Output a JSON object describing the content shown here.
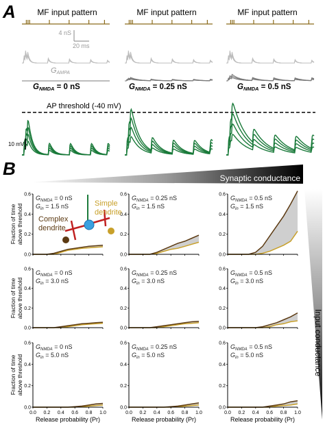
{
  "panel_a": {
    "letter": "A",
    "mf_label": "MF input pattern",
    "scale_ns": "4 nS",
    "scale_ms": "20 ms",
    "gampa_prefix": "G",
    "gampa_sub": "AMPA",
    "gnmda_titles": [
      {
        "prefix": "G",
        "sub": "NMDA",
        "value": " = 0 nS"
      },
      {
        "prefix": "G",
        "sub": "NMDA",
        "value": " = 0.25 nS"
      },
      {
        "prefix": "G",
        "sub": "NMDA",
        "value": " = 0.5 nS"
      }
    ],
    "ap_threshold": "AP threshold (-40 mV)",
    "scale_mv": "10 mV"
  },
  "panel_b": {
    "letter": "B",
    "synaptic_label": "Synaptic conductance",
    "input_label": "Input conductance",
    "ylabel_line1": "Fraction of time",
    "ylabel_line2": "above threshold",
    "xlabel": "Release probability (Pr)",
    "xticks": [
      "0.0",
      "0.2",
      "0.4",
      "0.6",
      "0.8",
      "1.0"
    ],
    "yticks": [
      "0.0",
      "0.2",
      "0.4",
      "0.6"
    ],
    "complex_label_1": "Complex",
    "complex_label_2": "dendrite",
    "simple_label_1": "Simple",
    "simple_label_2": "dendrite",
    "gnmda_values": [
      "0 nS",
      "0.25 nS",
      "0.5 nS"
    ],
    "gin_values": [
      "1.5 nS",
      "3.0 nS",
      "5.0 nS"
    ],
    "colors": {
      "complex": "#5c3a12",
      "simple": "#c8a02a",
      "fill": "#cfcfcf",
      "trace": "#1a7a3a",
      "mf": "#8a6a1a"
    }
  },
  "chart_data": {
    "type": "line",
    "xlabel": "Release probability (Pr)",
    "ylabel": "Fraction of time above threshold",
    "xlim": [
      0,
      1
    ],
    "ylim": [
      0,
      0.6
    ],
    "x": [
      0.0,
      0.1,
      0.2,
      0.3,
      0.4,
      0.5,
      0.6,
      0.7,
      0.8,
      0.9,
      1.0
    ],
    "panels": [
      {
        "gnmda": "0 nS",
        "gin": "1.5 nS",
        "complex": [
          0,
          0,
          0,
          0.01,
          0.03,
          0.05,
          0.06,
          0.07,
          0.08,
          0.085,
          0.09
        ],
        "simple": [
          0,
          0,
          0,
          0,
          0.02,
          0.04,
          0.05,
          0.06,
          0.065,
          0.07,
          0.075
        ]
      },
      {
        "gnmda": "0.25 nS",
        "gin": "1.5 nS",
        "complex": [
          0,
          0,
          0,
          0,
          0.02,
          0.05,
          0.08,
          0.11,
          0.13,
          0.16,
          0.19
        ],
        "simple": [
          0,
          0,
          0,
          0,
          0.01,
          0.03,
          0.05,
          0.06,
          0.08,
          0.1,
          0.12
        ]
      },
      {
        "gnmda": "0.5 nS",
        "gin": "1.5 nS",
        "complex": [
          0,
          0,
          0,
          0,
          0.02,
          0.08,
          0.18,
          0.28,
          0.38,
          0.5,
          0.63
        ],
        "simple": [
          0,
          0,
          0,
          0,
          0,
          0.01,
          0.03,
          0.06,
          0.09,
          0.13,
          0.23
        ]
      },
      {
        "gnmda": "0 nS",
        "gin": "3.0 nS",
        "complex": [
          0,
          0,
          0,
          0,
          0.01,
          0.02,
          0.03,
          0.04,
          0.045,
          0.05,
          0.055
        ],
        "simple": [
          0,
          0,
          0,
          0,
          0,
          0.01,
          0.02,
          0.03,
          0.035,
          0.04,
          0.045
        ]
      },
      {
        "gnmda": "0.25 nS",
        "gin": "3.0 nS",
        "complex": [
          0,
          0,
          0,
          0,
          0.01,
          0.02,
          0.03,
          0.04,
          0.05,
          0.06,
          0.065
        ],
        "simple": [
          0,
          0,
          0,
          0,
          0,
          0.01,
          0.02,
          0.03,
          0.04,
          0.045,
          0.05
        ]
      },
      {
        "gnmda": "0.5 nS",
        "gin": "3.0 nS",
        "complex": [
          0,
          0,
          0,
          0,
          0,
          0.01,
          0.03,
          0.05,
          0.08,
          0.11,
          0.15
        ],
        "simple": [
          0,
          0,
          0,
          0,
          0,
          0,
          0.01,
          0.03,
          0.04,
          0.06,
          0.07
        ]
      },
      {
        "gnmda": "0 nS",
        "gin": "5.0 nS",
        "complex": [
          0,
          0,
          0,
          0,
          0,
          0,
          0.005,
          0.01,
          0.02,
          0.03,
          0.035
        ],
        "simple": [
          0,
          0,
          0,
          0,
          0,
          0,
          0,
          0.005,
          0.01,
          0.015,
          0.02
        ]
      },
      {
        "gnmda": "0.25 nS",
        "gin": "5.0 nS",
        "complex": [
          0,
          0,
          0,
          0,
          0,
          0,
          0.005,
          0.01,
          0.02,
          0.03,
          0.04
        ],
        "simple": [
          0,
          0,
          0,
          0,
          0,
          0,
          0,
          0.005,
          0.01,
          0.015,
          0.02
        ]
      },
      {
        "gnmda": "0.5 nS",
        "gin": "5.0 nS",
        "complex": [
          0,
          0,
          0,
          0,
          0,
          0,
          0.01,
          0.02,
          0.03,
          0.05,
          0.06
        ],
        "simple": [
          0,
          0,
          0,
          0,
          0,
          0,
          0,
          0.01,
          0.015,
          0.02,
          0.03
        ]
      }
    ]
  }
}
